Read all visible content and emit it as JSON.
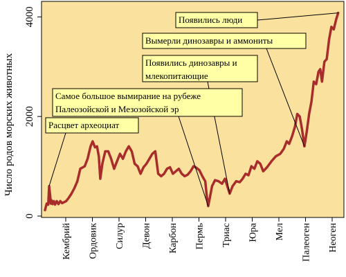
{
  "chart_data": {
    "type": "line",
    "title": "",
    "ylabel": "Число родов морских животных",
    "xlabel": "",
    "ylim": [
      0,
      4200
    ],
    "yticks": [
      0,
      2000,
      4000
    ],
    "x_categories": [
      "Кембрий",
      "Ордовик",
      "Силур",
      "Девон",
      "Карбон",
      "Пермь",
      "Триас",
      "Юра",
      "Мел",
      "Палеоген",
      "Неоген"
    ],
    "grid": false,
    "series": [
      {
        "values": [
          {
            "x": 0.0,
            "y": 120
          },
          {
            "x": 0.06,
            "y": 250
          },
          {
            "x": 0.11,
            "y": 230
          },
          {
            "x": 0.14,
            "y": 600
          },
          {
            "x": 0.18,
            "y": 380
          },
          {
            "x": 0.2,
            "y": 250
          },
          {
            "x": 0.22,
            "y": 320
          },
          {
            "x": 0.26,
            "y": 240
          },
          {
            "x": 0.3,
            "y": 300
          },
          {
            "x": 0.34,
            "y": 230
          },
          {
            "x": 0.4,
            "y": 300
          },
          {
            "x": 0.46,
            "y": 240
          },
          {
            "x": 0.52,
            "y": 300
          },
          {
            "x": 0.58,
            "y": 260
          },
          {
            "x": 0.65,
            "y": 280
          },
          {
            "x": 0.72,
            "y": 300
          },
          {
            "x": 0.8,
            "y": 360
          },
          {
            "x": 0.9,
            "y": 450
          },
          {
            "x": 1.0,
            "y": 560
          },
          {
            "x": 1.1,
            "y": 700
          },
          {
            "x": 1.2,
            "y": 950
          },
          {
            "x": 1.35,
            "y": 1000
          },
          {
            "x": 1.45,
            "y": 1150
          },
          {
            "x": 1.55,
            "y": 1400
          },
          {
            "x": 1.62,
            "y": 1500
          },
          {
            "x": 1.7,
            "y": 1380
          },
          {
            "x": 1.77,
            "y": 1400
          },
          {
            "x": 1.83,
            "y": 1200
          },
          {
            "x": 1.88,
            "y": 750
          },
          {
            "x": 1.95,
            "y": 1050
          },
          {
            "x": 2.05,
            "y": 1300
          },
          {
            "x": 2.15,
            "y": 1300
          },
          {
            "x": 2.25,
            "y": 1150
          },
          {
            "x": 2.35,
            "y": 950
          },
          {
            "x": 2.45,
            "y": 1100
          },
          {
            "x": 2.55,
            "y": 1250
          },
          {
            "x": 2.65,
            "y": 1150
          },
          {
            "x": 2.75,
            "y": 1300
          },
          {
            "x": 2.85,
            "y": 1400
          },
          {
            "x": 2.95,
            "y": 1300
          },
          {
            "x": 3.05,
            "y": 1050
          },
          {
            "x": 3.15,
            "y": 1000
          },
          {
            "x": 3.25,
            "y": 850
          },
          {
            "x": 3.35,
            "y": 980
          },
          {
            "x": 3.45,
            "y": 1050
          },
          {
            "x": 3.55,
            "y": 1150
          },
          {
            "x": 3.65,
            "y": 1250
          },
          {
            "x": 3.75,
            "y": 1300
          },
          {
            "x": 3.85,
            "y": 850
          },
          {
            "x": 3.95,
            "y": 800
          },
          {
            "x": 4.05,
            "y": 850
          },
          {
            "x": 4.15,
            "y": 950
          },
          {
            "x": 4.25,
            "y": 980
          },
          {
            "x": 4.35,
            "y": 850
          },
          {
            "x": 4.45,
            "y": 900
          },
          {
            "x": 4.55,
            "y": 950
          },
          {
            "x": 4.65,
            "y": 850
          },
          {
            "x": 4.75,
            "y": 800
          },
          {
            "x": 4.85,
            "y": 830
          },
          {
            "x": 4.95,
            "y": 900
          },
          {
            "x": 5.05,
            "y": 1000
          },
          {
            "x": 5.15,
            "y": 970
          },
          {
            "x": 5.25,
            "y": 920
          },
          {
            "x": 5.35,
            "y": 800
          },
          {
            "x": 5.45,
            "y": 700
          },
          {
            "x": 5.5,
            "y": 400
          },
          {
            "x": 5.55,
            "y": 200
          },
          {
            "x": 5.6,
            "y": 350
          },
          {
            "x": 5.68,
            "y": 600
          },
          {
            "x": 5.78,
            "y": 720
          },
          {
            "x": 5.9,
            "y": 700
          },
          {
            "x": 6.02,
            "y": 650
          },
          {
            "x": 6.12,
            "y": 750
          },
          {
            "x": 6.2,
            "y": 600
          },
          {
            "x": 6.28,
            "y": 450
          },
          {
            "x": 6.38,
            "y": 600
          },
          {
            "x": 6.5,
            "y": 700
          },
          {
            "x": 6.62,
            "y": 680
          },
          {
            "x": 6.72,
            "y": 750
          },
          {
            "x": 6.82,
            "y": 850
          },
          {
            "x": 6.92,
            "y": 820
          },
          {
            "x": 7.02,
            "y": 1000
          },
          {
            "x": 7.12,
            "y": 950
          },
          {
            "x": 7.22,
            "y": 1100
          },
          {
            "x": 7.32,
            "y": 1050
          },
          {
            "x": 7.42,
            "y": 900
          },
          {
            "x": 7.55,
            "y": 980
          },
          {
            "x": 7.7,
            "y": 1100
          },
          {
            "x": 7.85,
            "y": 1200
          },
          {
            "x": 8.0,
            "y": 1250
          },
          {
            "x": 8.12,
            "y": 1350
          },
          {
            "x": 8.22,
            "y": 1500
          },
          {
            "x": 8.3,
            "y": 1450
          },
          {
            "x": 8.4,
            "y": 1600
          },
          {
            "x": 8.5,
            "y": 1800
          },
          {
            "x": 8.58,
            "y": 2050
          },
          {
            "x": 8.66,
            "y": 2000
          },
          {
            "x": 8.74,
            "y": 1750
          },
          {
            "x": 8.82,
            "y": 1400
          },
          {
            "x": 8.9,
            "y": 1700
          },
          {
            "x": 8.98,
            "y": 2050
          },
          {
            "x": 9.06,
            "y": 2300
          },
          {
            "x": 9.14,
            "y": 2700
          },
          {
            "x": 9.22,
            "y": 2650
          },
          {
            "x": 9.3,
            "y": 2900
          },
          {
            "x": 9.36,
            "y": 2950
          },
          {
            "x": 9.42,
            "y": 2700
          },
          {
            "x": 9.5,
            "y": 3100
          },
          {
            "x": 9.58,
            "y": 3150
          },
          {
            "x": 9.66,
            "y": 3550
          },
          {
            "x": 9.74,
            "y": 3800
          },
          {
            "x": 9.82,
            "y": 3750
          },
          {
            "x": 9.9,
            "y": 3950
          },
          {
            "x": 9.97,
            "y": 4080
          }
        ]
      }
    ],
    "colors": {
      "plot_bg": "#FAE29E",
      "page_bg": "#FFFFFF",
      "line": "#A72C2B",
      "annotation_bg": "#FFFFA6",
      "axis": "#000000"
    },
    "annotations": [
      {
        "lines": [
          "Появились люди"
        ],
        "target": {
          "x": 9.97,
          "y": 4080
        }
      },
      {
        "lines": [
          "Вымерли динозавры и аммониты"
        ],
        "target": {
          "x": 8.82,
          "y": 1400
        }
      },
      {
        "lines": [
          "Появились динозавры и",
          "млекопитающие"
        ],
        "target": {
          "x": 6.28,
          "y": 450
        }
      },
      {
        "lines": [
          "Самое большое вымирание на рубеже",
          "Палеозойской и Мезозойской эр"
        ],
        "target": {
          "x": 5.55,
          "y": 200
        }
      },
      {
        "lines": [
          "Расцвет археоциат"
        ],
        "target": {
          "x": 0.14,
          "y": 600
        }
      }
    ]
  }
}
